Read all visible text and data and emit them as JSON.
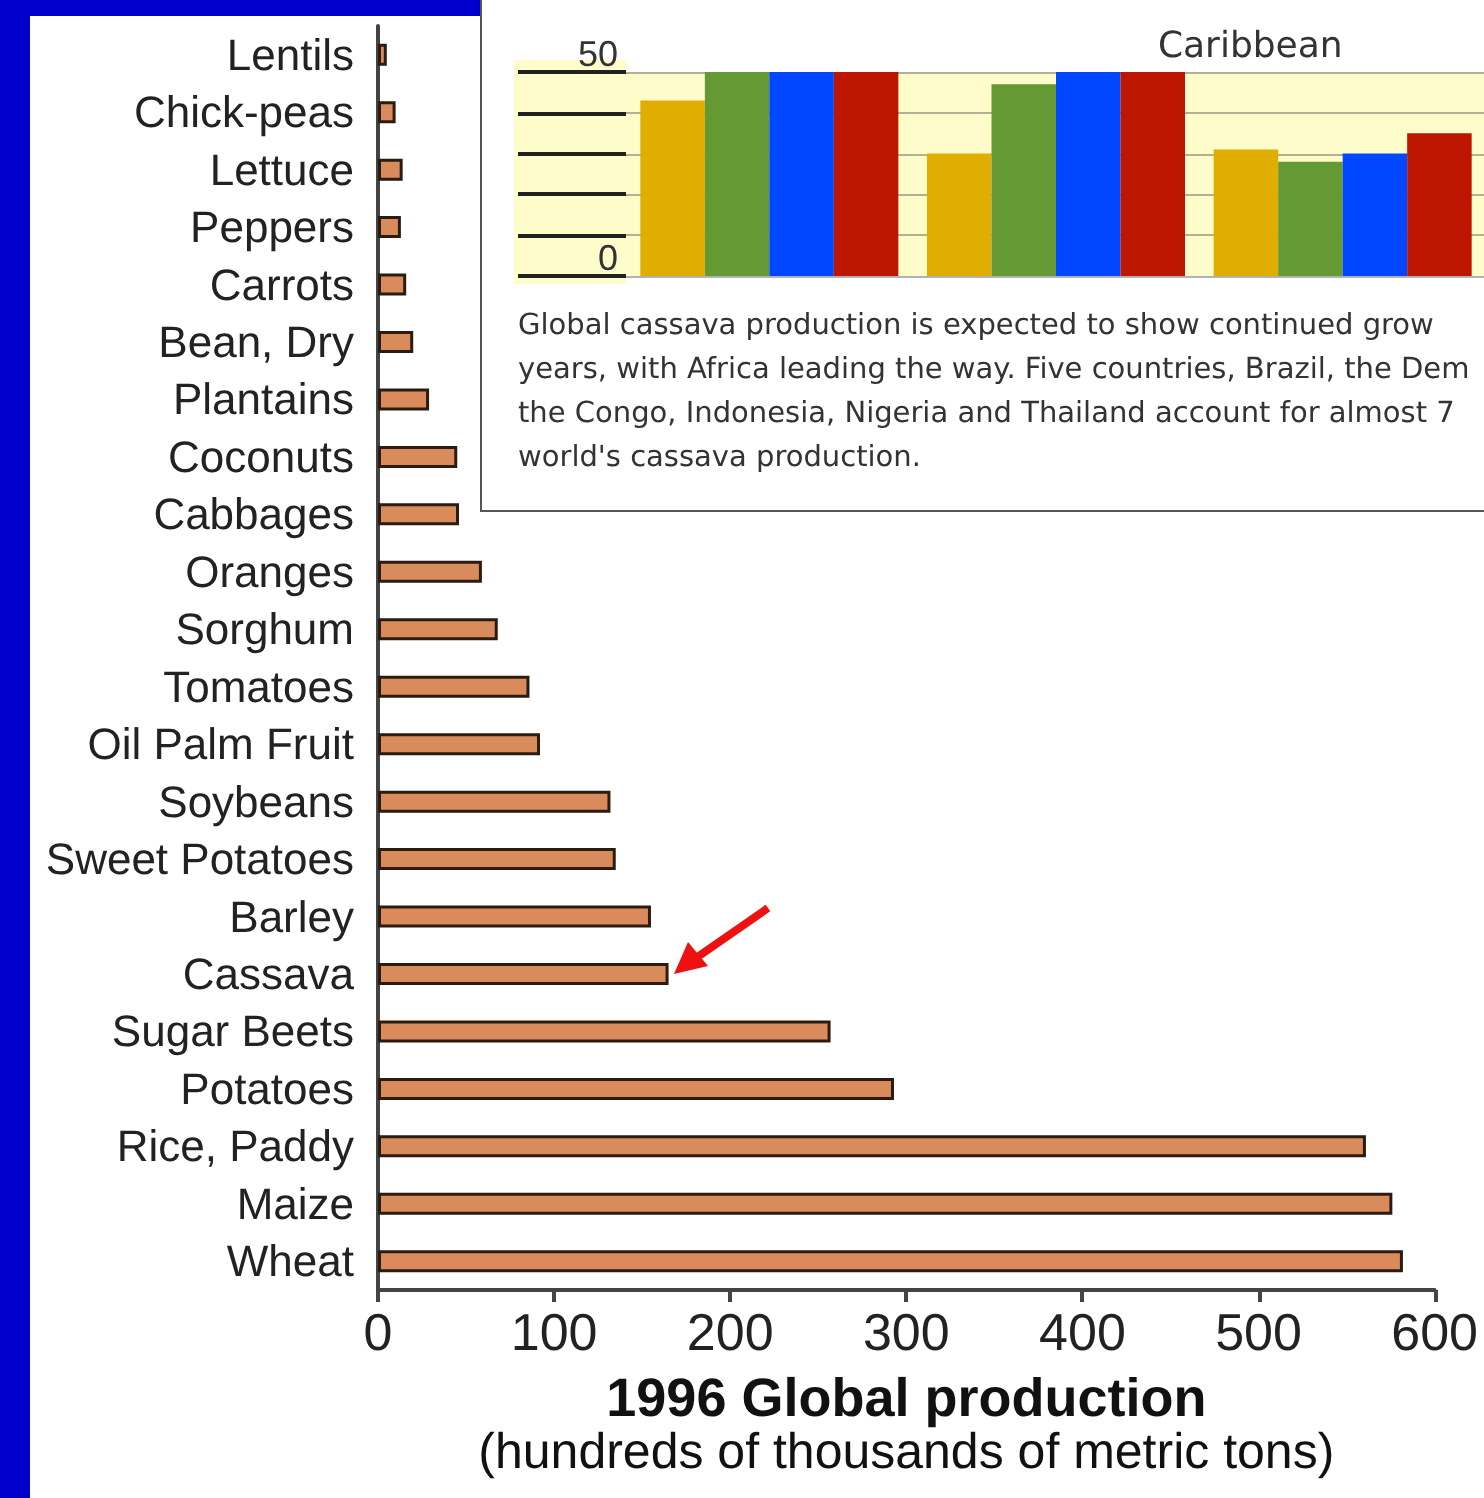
{
  "chart_data": [
    {
      "type": "bar",
      "orientation": "horizontal",
      "categories": [
        "Lentils",
        "Chick-peas",
        "Lettuce",
        "Peppers",
        "Carrots",
        "Bean, Dry",
        "Plantains",
        "Coconuts",
        "Cabbages",
        "Oranges",
        "Sorghum",
        "Tomatoes",
        "Oil Palm Fruit",
        "Soybeans",
        "Sweet Potatoes",
        "Barley",
        "Cassava",
        "Sugar Beets",
        "Potatoes",
        "Rice, Paddy",
        "Maize",
        "Wheat"
      ],
      "values": [
        5,
        10,
        14,
        13,
        16,
        20,
        29,
        45,
        46,
        59,
        68,
        86,
        92,
        132,
        135,
        155,
        165,
        257,
        293,
        561,
        576,
        582
      ],
      "color": "#d98b5b",
      "xlim": [
        0,
        600
      ],
      "xticks": [
        0,
        100,
        200,
        300,
        400,
        500,
        600
      ],
      "xlabel": "1996 Global production\n(hundreds of thousands of metric tons)"
    },
    {
      "type": "bar",
      "categories": [
        null,
        null,
        "Caribbean"
      ],
      "series": [
        {
          "color": "#dfae00",
          "values": [
            43,
            30,
            31
          ]
        },
        {
          "color": "#659933",
          "values": [
            50,
            47,
            28
          ]
        },
        {
          "color": "#0047ff",
          "values": [
            50,
            50,
            30
          ]
        },
        {
          "color": "#bd1600",
          "values": [
            50,
            50,
            35
          ]
        }
      ],
      "ylim": [
        0,
        50
      ],
      "yticks": [
        0,
        {
          "value": 10,
          "label": null
        },
        {
          "value": 20,
          "label": null
        },
        {
          "value": 30,
          "label": null
        },
        {
          "value": 40,
          "label": null
        },
        50
      ],
      "annotations": [
        "Global cassava production is expected to show continued grow years, with Africa leading the way. Five countries, Brazil, the Dem the Congo, Indonesia, Nigeria and Thailand account for almost 7 world's cassava production."
      ],
      "grid": "y"
    }
  ]
}
